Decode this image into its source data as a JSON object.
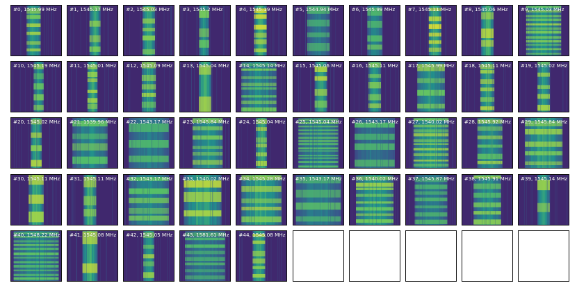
{
  "colors": {
    "background": "#440154",
    "low": "#3b528b",
    "mid": "#21918c",
    "high": "#5ec962",
    "peak": "#fde725",
    "empty": "#ffffff"
  },
  "panels": [
    {
      "label": "#0, 1545.99 MHz",
      "band": 0.45,
      "bandw": 0.28,
      "stripes": 6,
      "intensity": 0.75
    },
    {
      "label": "#1, 1545.17 MHz",
      "band": 0.55,
      "bandw": 0.22,
      "stripes": 4,
      "intensity": 0.8
    },
    {
      "label": "#2, 1545.03 MHz",
      "band": 0.5,
      "bandw": 0.25,
      "stripes": 5,
      "intensity": 0.8
    },
    {
      "label": "#3, 1545.2 MHz",
      "band": 0.48,
      "bandw": 0.2,
      "stripes": 3,
      "intensity": 0.7
    },
    {
      "label": "#4, 1545.19 MHz",
      "band": 0.48,
      "bandw": 0.25,
      "stripes": 6,
      "intensity": 0.9
    },
    {
      "label": "#5, 1544.94 MHz",
      "band": 0.5,
      "bandw": 0.45,
      "stripes": 4,
      "intensity": 0.45
    },
    {
      "label": "#6, 1545.99 MHz",
      "band": 0.5,
      "bandw": 0.3,
      "stripes": 4,
      "intensity": 0.6
    },
    {
      "label": "#7, 1545.11 MHz",
      "band": 0.58,
      "bandw": 0.25,
      "stripes": 6,
      "intensity": 0.9
    },
    {
      "label": "#8, 1545.06 MHz",
      "band": 0.5,
      "bandw": 0.25,
      "stripes": 3,
      "intensity": 0.9
    },
    {
      "label": "#9, 1545.03 MHz",
      "band": 0.5,
      "bandw": 0.7,
      "stripes": 12,
      "intensity": 0.7
    },
    {
      "label": "#10, 1545.19 MHz",
      "band": 0.55,
      "bandw": 0.2,
      "stripes": 5,
      "intensity": 0.7
    },
    {
      "label": "#11, 1545.01 MHz",
      "band": 0.5,
      "bandw": 0.2,
      "stripes": 6,
      "intensity": 0.85
    },
    {
      "label": "#12, 1545.09 MHz",
      "band": 0.5,
      "bandw": 0.28,
      "stripes": 5,
      "intensity": 0.75
    },
    {
      "label": "#13, 1545.04 MHz",
      "band": 0.5,
      "bandw": 0.25,
      "stripes": 2,
      "intensity": 0.9
    },
    {
      "label": "#14, 1545.14 MHz",
      "band": 0.45,
      "bandw": 0.7,
      "stripes": 8,
      "intensity": 0.6
    },
    {
      "label": "#15, 1545.06 MHz",
      "band": 0.55,
      "bandw": 0.25,
      "stripes": 4,
      "intensity": 0.8
    },
    {
      "label": "#16, 1545.11 MHz",
      "band": 0.5,
      "bandw": 0.25,
      "stripes": 5,
      "intensity": 0.75
    },
    {
      "label": "#17, 1545.99 MHz",
      "band": 0.5,
      "bandw": 0.55,
      "stripes": 4,
      "intensity": 0.7
    },
    {
      "label": "#18, 1545.11 MHz",
      "band": 0.5,
      "bandw": 0.28,
      "stripes": 6,
      "intensity": 0.8
    },
    {
      "label": "#19, 1545.02 MHz",
      "band": 0.5,
      "bandw": 0.25,
      "stripes": 5,
      "intensity": 0.75
    },
    {
      "label": "#20, 1545.02 MHz",
      "band": 0.5,
      "bandw": 0.22,
      "stripes": 4,
      "intensity": 0.8
    },
    {
      "label": "#21, 1539.96 MHz",
      "band": 0.45,
      "bandw": 0.7,
      "stripes": 4,
      "intensity": 0.6
    },
    {
      "label": "#22, 1543.17 MHz",
      "band": 0.5,
      "bandw": 0.8,
      "stripes": 3,
      "intensity": 0.5
    },
    {
      "label": "#23, 1545.84 MHz",
      "band": 0.55,
      "bandw": 0.6,
      "stripes": 6,
      "intensity": 0.7
    },
    {
      "label": "#24, 1545.04 MHz",
      "band": 0.5,
      "bandw": 0.22,
      "stripes": 6,
      "intensity": 0.9
    },
    {
      "label": "#25, 1545.04 MHz",
      "band": 0.5,
      "bandw": 0.8,
      "stripes": 14,
      "intensity": 0.55
    },
    {
      "label": "#26, 1543.17 MHz",
      "band": 0.5,
      "bandw": 0.8,
      "stripes": 4,
      "intensity": 0.45
    },
    {
      "label": "#27, 1540.02 MHz",
      "band": 0.5,
      "bandw": 0.7,
      "stripes": 10,
      "intensity": 0.75
    },
    {
      "label": "#28, 1545.92 MHz",
      "band": 0.55,
      "bandw": 0.5,
      "stripes": 6,
      "intensity": 0.7
    },
    {
      "label": "#29, 1545.84 MHz",
      "band": 0.5,
      "bandw": 0.75,
      "stripes": 5,
      "intensity": 0.75
    },
    {
      "label": "#30, 1545.11 MHz",
      "band": 0.5,
      "bandw": 0.3,
      "stripes": 3,
      "intensity": 0.85
    },
    {
      "label": "#31, 1545.11 MHz",
      "band": 0.45,
      "bandw": 0.25,
      "stripes": 3,
      "intensity": 0.9
    },
    {
      "label": "#32, 1543.17 MHz",
      "band": 0.5,
      "bandw": 0.8,
      "stripes": 5,
      "intensity": 0.6
    },
    {
      "label": "#33, 1540.02 MHz",
      "band": 0.45,
      "bandw": 0.75,
      "stripes": 3,
      "intensity": 0.85
    },
    {
      "label": "#34, 1545.28 MHz",
      "band": 0.5,
      "bandw": 0.8,
      "stripes": 5,
      "intensity": 0.8
    },
    {
      "label": "#35, 1543.17 MHz",
      "band": 0.5,
      "bandw": 0.9,
      "stripes": 4,
      "intensity": 0.5
    },
    {
      "label": "#36, 1540.02 MHz",
      "band": 0.5,
      "bandw": 0.75,
      "stripes": 8,
      "intensity": 0.7
    },
    {
      "label": "#37, 1545.87 MHz",
      "band": 0.5,
      "bandw": 0.65,
      "stripes": 7,
      "intensity": 0.5
    },
    {
      "label": "#38, 1545.91 MHz",
      "band": 0.5,
      "bandw": 0.55,
      "stripes": 6,
      "intensity": 0.65
    },
    {
      "label": "#39, 1545.14 MHz",
      "band": 0.5,
      "bandw": 0.25,
      "stripes": 2,
      "intensity": 0.8
    },
    {
      "label": "#40, 1548.22 MHz",
      "band": 0.5,
      "bandw": 0.9,
      "stripes": 12,
      "intensity": 0.55
    },
    {
      "label": "#41, 1545.08 MHz",
      "band": 0.45,
      "bandw": 0.3,
      "stripes": 2,
      "intensity": 0.85
    },
    {
      "label": "#42, 1545.05 MHz",
      "band": 0.5,
      "bandw": 0.22,
      "stripes": 5,
      "intensity": 0.75
    },
    {
      "label": "#43, 1581.61 MHz",
      "band": 0.5,
      "bandw": 0.8,
      "stripes": 8,
      "intensity": 0.45
    },
    {
      "label": "#44, 1545.08 MHz",
      "band": 0.45,
      "bandw": 0.25,
      "stripes": 6,
      "intensity": 0.85
    },
    {
      "label": "",
      "empty": true
    },
    {
      "label": "",
      "empty": true
    },
    {
      "label": "",
      "empty": true
    },
    {
      "label": "",
      "empty": true
    },
    {
      "label": "",
      "empty": true
    }
  ]
}
